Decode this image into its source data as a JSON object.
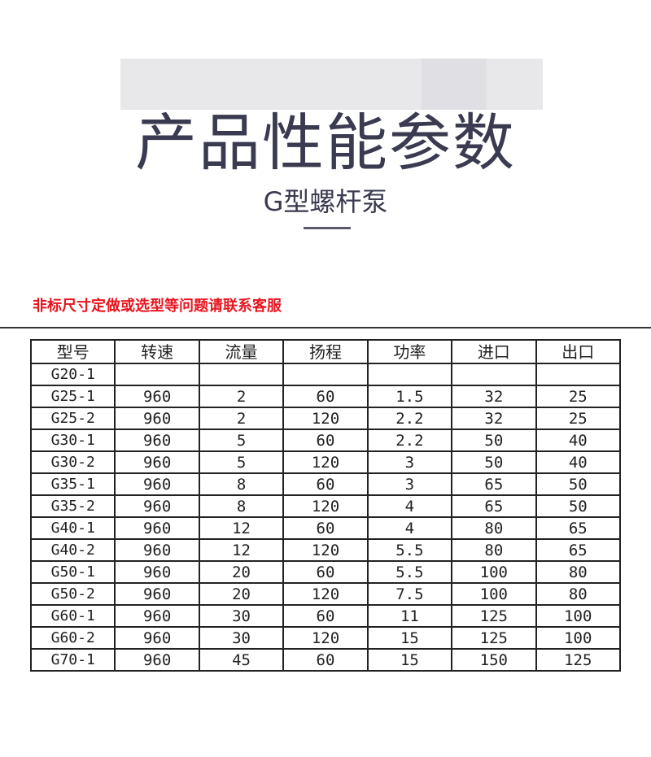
{
  "header": {
    "title": "产品性能参数",
    "subtitle": "G型螺杆泵"
  },
  "notice": "非标尺寸定做或选型等问题请联系客服",
  "colors": {
    "title": "#3a3a50",
    "notice": "#e8141e"
  },
  "table": {
    "columns": [
      "型号",
      "转速",
      "流量",
      "扬程",
      "功率",
      "进口",
      "出口"
    ],
    "rows": [
      [
        "G20-1",
        "",
        "",
        "",
        "",
        "",
        ""
      ],
      [
        "G25-1",
        "960",
        "2",
        "60",
        "1.5",
        "32",
        "25"
      ],
      [
        "G25-2",
        "960",
        "2",
        "120",
        "2.2",
        "32",
        "25"
      ],
      [
        "G30-1",
        "960",
        "5",
        "60",
        "2.2",
        "50",
        "40"
      ],
      [
        "G30-2",
        "960",
        "5",
        "120",
        "3",
        "50",
        "40"
      ],
      [
        "G35-1",
        "960",
        "8",
        "60",
        "3",
        "65",
        "50"
      ],
      [
        "G35-2",
        "960",
        "8",
        "120",
        "4",
        "65",
        "50"
      ],
      [
        "G40-1",
        "960",
        "12",
        "60",
        "4",
        "80",
        "65"
      ],
      [
        "G40-2",
        "960",
        "12",
        "120",
        "5.5",
        "80",
        "65"
      ],
      [
        "G50-1",
        "960",
        "20",
        "60",
        "5.5",
        "100",
        "80"
      ],
      [
        "G50-2",
        "960",
        "20",
        "120",
        "7.5",
        "100",
        "80"
      ],
      [
        "G60-1",
        "960",
        "30",
        "60",
        "11",
        "125",
        "100"
      ],
      [
        "G60-2",
        "960",
        "30",
        "120",
        "15",
        "125",
        "100"
      ],
      [
        "G70-1",
        "960",
        "45",
        "60",
        "15",
        "150",
        "125"
      ]
    ]
  }
}
